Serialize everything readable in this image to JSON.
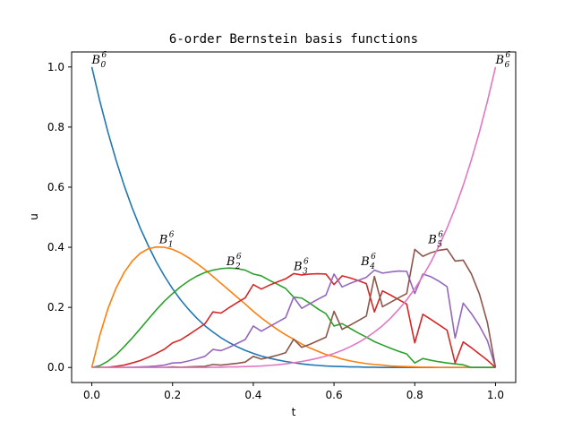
{
  "chart_data": {
    "type": "line",
    "title": "6-order Bernstein basis functions",
    "xlabel": "t",
    "ylabel": "u",
    "xlim": [
      -0.05,
      1.05
    ],
    "ylim": [
      -0.05,
      1.05
    ],
    "xticks": [
      0.0,
      0.2,
      0.4,
      0.6,
      0.8,
      1.0
    ],
    "xtick_labels": [
      "0.0",
      "0.2",
      "0.4",
      "0.6",
      "0.8",
      "1.0"
    ],
    "yticks": [
      0.0,
      0.2,
      0.4,
      0.6,
      0.8,
      1.0
    ],
    "ytick_labels": [
      "0.0",
      "0.2",
      "0.4",
      "0.6",
      "0.8",
      "1.0"
    ],
    "grid": false,
    "x": [
      0.0,
      0.02,
      0.04,
      0.06,
      0.08,
      0.1,
      0.12,
      0.14,
      0.16,
      0.18,
      0.2,
      0.22,
      0.24,
      0.26,
      0.28,
      0.3,
      0.32,
      0.34,
      0.36,
      0.38,
      0.4,
      0.42,
      0.44,
      0.46,
      0.48,
      0.5,
      0.52,
      0.54,
      0.56,
      0.58,
      0.6,
      0.62,
      0.64,
      0.66,
      0.68,
      0.7,
      0.72,
      0.74,
      0.76,
      0.78,
      0.8,
      0.82,
      0.84,
      0.86,
      0.88,
      0.9,
      0.92,
      0.94,
      0.96,
      0.98,
      1.0
    ],
    "series": [
      {
        "color": "#1f77b4",
        "label": {
          "base": "B",
          "sub": "0",
          "sup": "6",
          "x": 0.0,
          "y": 1.0
        },
        "values": [
          1.0,
          0.886,
          0.783,
          0.69,
          0.606,
          0.531,
          0.464,
          0.405,
          0.351,
          0.304,
          0.262,
          0.225,
          0.193,
          0.164,
          0.139,
          0.118,
          0.099,
          0.083,
          0.069,
          0.057,
          0.047,
          0.038,
          0.031,
          0.025,
          0.02,
          0.016,
          0.012,
          0.009,
          0.007,
          0.005,
          0.004,
          0.003,
          0.002,
          0.002,
          0.001,
          0.001,
          0.0,
          0.0,
          0.0,
          0.0,
          0.0,
          0.0,
          0.0,
          0.0,
          0.0,
          0.0,
          0.0,
          0.0,
          0.0,
          0.0,
          0.0
        ]
      },
      {
        "color": "#ff7f0e",
        "label": {
          "base": "B",
          "sub": "1",
          "sup": "6",
          "x": 0.1667,
          "y": 0.4019
        },
        "values": [
          0.0,
          0.108,
          0.196,
          0.264,
          0.316,
          0.354,
          0.38,
          0.395,
          0.401,
          0.4,
          0.393,
          0.381,
          0.365,
          0.346,
          0.326,
          0.303,
          0.28,
          0.257,
          0.234,
          0.211,
          0.187,
          0.165,
          0.145,
          0.126,
          0.109,
          0.094,
          0.078,
          0.065,
          0.054,
          0.043,
          0.037,
          0.028,
          0.022,
          0.017,
          0.013,
          0.01,
          0.008,
          0.005,
          0.004,
          0.003,
          0.002,
          0.001,
          0.001,
          0.0,
          0.0,
          0.0,
          0.0,
          0.0,
          0.0,
          0.0,
          0.0
        ]
      },
      {
        "color": "#2ca02c",
        "label": {
          "base": "B",
          "sub": "2",
          "sup": "6",
          "x": 0.3333,
          "y": 0.3292
        },
        "values": [
          0.0,
          0.006,
          0.021,
          0.042,
          0.069,
          0.098,
          0.129,
          0.161,
          0.192,
          0.221,
          0.246,
          0.269,
          0.288,
          0.304,
          0.316,
          0.324,
          0.329,
          0.331,
          0.329,
          0.324,
          0.311,
          0.305,
          0.29,
          0.277,
          0.263,
          0.234,
          0.231,
          0.214,
          0.195,
          0.179,
          0.138,
          0.146,
          0.13,
          0.115,
          0.101,
          0.086,
          0.075,
          0.064,
          0.054,
          0.045,
          0.015,
          0.03,
          0.024,
          0.019,
          0.015,
          0.012,
          0.009,
          0.0,
          0.0,
          0.0,
          0.0
        ]
      },
      {
        "color": "#d62728",
        "label": {
          "base": "B",
          "sub": "3",
          "sup": "6",
          "x": 0.5,
          "y": 0.3125
        },
        "values": [
          0.0,
          0.0,
          0.001,
          0.004,
          0.008,
          0.015,
          0.023,
          0.034,
          0.047,
          0.061,
          0.082,
          0.092,
          0.109,
          0.127,
          0.145,
          0.185,
          0.181,
          0.199,
          0.216,
          0.232,
          0.276,
          0.261,
          0.274,
          0.285,
          0.295,
          0.3125,
          0.308,
          0.311,
          0.312,
          0.311,
          0.276,
          0.305,
          0.298,
          0.289,
          0.279,
          0.185,
          0.255,
          0.241,
          0.226,
          0.211,
          0.082,
          0.177,
          0.16,
          0.142,
          0.124,
          0.015,
          0.085,
          0.066,
          0.045,
          0.024,
          0.0
        ]
      },
      {
        "color": "#9467bd",
        "label": {
          "base": "B",
          "sub": "4",
          "sup": "6",
          "x": 0.6667,
          "y": 0.3292
        },
        "values": [
          0.0,
          0.0,
          0.0,
          0.0,
          0.0,
          0.001,
          0.002,
          0.003,
          0.005,
          0.008,
          0.015,
          0.016,
          0.022,
          0.029,
          0.037,
          0.06,
          0.056,
          0.067,
          0.08,
          0.093,
          0.138,
          0.121,
          0.136,
          0.151,
          0.166,
          0.234,
          0.197,
          0.212,
          0.227,
          0.241,
          0.311,
          0.268,
          0.28,
          0.29,
          0.3,
          0.324,
          0.314,
          0.318,
          0.321,
          0.32,
          0.246,
          0.311,
          0.302,
          0.287,
          0.269,
          0.098,
          0.214,
          0.18,
          0.139,
          0.089,
          0.0
        ]
      },
      {
        "color": "#8c564b",
        "label": {
          "base": "B",
          "sub": "5",
          "sup": "6",
          "x": 0.8333,
          "y": 0.4019
        },
        "values": [
          0.0,
          0.0,
          0.0,
          0.0,
          0.0,
          0.0,
          0.0,
          0.0,
          0.0,
          0.0,
          0.002,
          0.001,
          0.002,
          0.003,
          0.004,
          0.01,
          0.008,
          0.011,
          0.014,
          0.018,
          0.037,
          0.028,
          0.034,
          0.041,
          0.049,
          0.094,
          0.067,
          0.077,
          0.089,
          0.101,
          0.187,
          0.127,
          0.141,
          0.156,
          0.171,
          0.303,
          0.202,
          0.217,
          0.232,
          0.246,
          0.393,
          0.37,
          0.382,
          0.39,
          0.394,
          0.354,
          0.357,
          0.312,
          0.245,
          0.149,
          0.0
        ]
      },
      {
        "color": "#e377c2",
        "label": {
          "base": "B",
          "sub": "6",
          "sup": "6",
          "x": 1.0,
          "y": 1.0
        },
        "values": [
          0.0,
          0.0,
          0.0,
          0.0,
          0.0,
          0.0,
          0.0,
          0.0,
          0.0,
          0.0,
          0.0,
          0.0,
          0.0,
          0.0,
          0.0,
          0.001,
          0.001,
          0.002,
          0.002,
          0.003,
          0.004,
          0.005,
          0.007,
          0.009,
          0.012,
          0.016,
          0.02,
          0.025,
          0.031,
          0.038,
          0.047,
          0.057,
          0.069,
          0.083,
          0.099,
          0.118,
          0.139,
          0.164,
          0.193,
          0.225,
          0.262,
          0.304,
          0.351,
          0.405,
          0.464,
          0.531,
          0.606,
          0.69,
          0.783,
          0.886,
          1.0
        ]
      }
    ]
  }
}
